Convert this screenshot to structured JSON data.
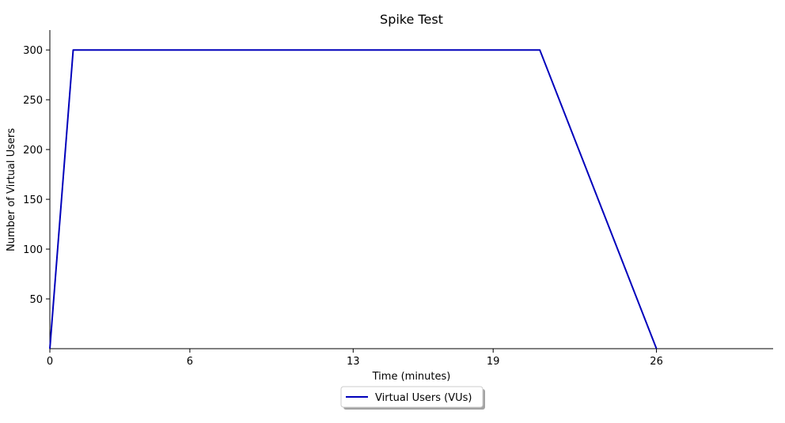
{
  "chart_data": {
    "type": "line",
    "title": "Spike Test",
    "xlabel": "Time (minutes)",
    "ylabel": "Number of Virtual Users",
    "xlim": [
      0,
      31
    ],
    "ylim": [
      0,
      320
    ],
    "xticks": [
      0,
      6,
      13,
      19,
      26
    ],
    "xtick_labels": [
      "0",
      "6",
      "13",
      "19",
      "26"
    ],
    "yticks": [
      50,
      100,
      150,
      200,
      250,
      300
    ],
    "ytick_labels": [
      "50",
      "100",
      "150",
      "200",
      "250",
      "300"
    ],
    "grid": false,
    "legend_position": "bottom-center",
    "series": [
      {
        "name": "Virtual Users (VUs)",
        "color": "#0000bb",
        "x": [
          0,
          1,
          21,
          26
        ],
        "y": [
          0,
          300,
          300,
          0
        ]
      }
    ]
  }
}
